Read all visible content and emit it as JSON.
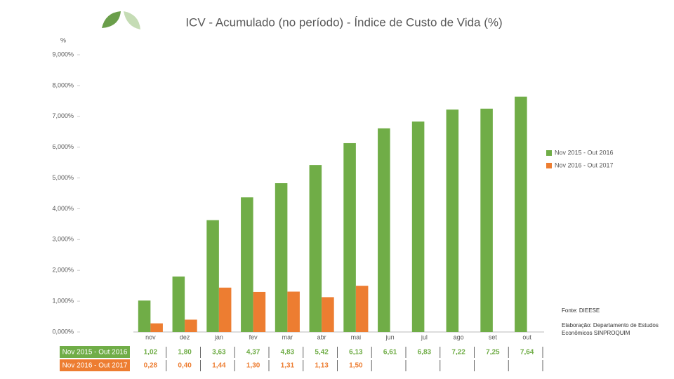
{
  "chart_data": {
    "type": "bar",
    "title": "ICV - Acumulado (no período) - Índice de Custo de Vida (%)",
    "y_label": "%",
    "categories": [
      "nov",
      "dez",
      "jan",
      "fev",
      "mar",
      "abr",
      "mai",
      "jun",
      "jul",
      "ago",
      "set",
      "out"
    ],
    "series": [
      {
        "name": "Nov 2015 - Out 2016",
        "color": "#70ad47",
        "values": [
          1.02,
          1.8,
          3.63,
          4.37,
          4.83,
          5.42,
          6.13,
          6.61,
          6.83,
          7.22,
          7.25,
          7.64
        ],
        "value_labels": [
          "1,02",
          "1,80",
          "3,63",
          "4,37",
          "4,83",
          "5,42",
          "6,13",
          "6,61",
          "6,83",
          "7,22",
          "7,25",
          "7,64"
        ]
      },
      {
        "name": "Nov 2016 - Out 2017",
        "color": "#ed7d31",
        "values": [
          0.28,
          0.4,
          1.44,
          1.3,
          1.31,
          1.13,
          1.5,
          null,
          null,
          null,
          null,
          null
        ],
        "value_labels": [
          "0,28",
          "0,40",
          "1,44",
          "1,30",
          "1,31",
          "1,13",
          "1,50",
          null,
          null,
          null,
          null,
          null
        ]
      }
    ],
    "ylim": [
      0,
      9
    ],
    "yticks": [
      {
        "value": 0,
        "label": "0,000%"
      },
      {
        "value": 1,
        "label": "1,000%"
      },
      {
        "value": 2,
        "label": "2,000%"
      },
      {
        "value": 3,
        "label": "3,000%"
      },
      {
        "value": 4,
        "label": "4,000%"
      },
      {
        "value": 5,
        "label": "5,000%"
      },
      {
        "value": 6,
        "label": "6,000%"
      },
      {
        "value": 7,
        "label": "7,000%"
      },
      {
        "value": 8,
        "label": "8,000%"
      },
      {
        "value": 9,
        "label": "9,000%"
      }
    ],
    "grid": false,
    "source": "Fonte: DIEESE",
    "note": "Elaboração: Departamento de Estudos Econômicos SINPROQUIM"
  }
}
